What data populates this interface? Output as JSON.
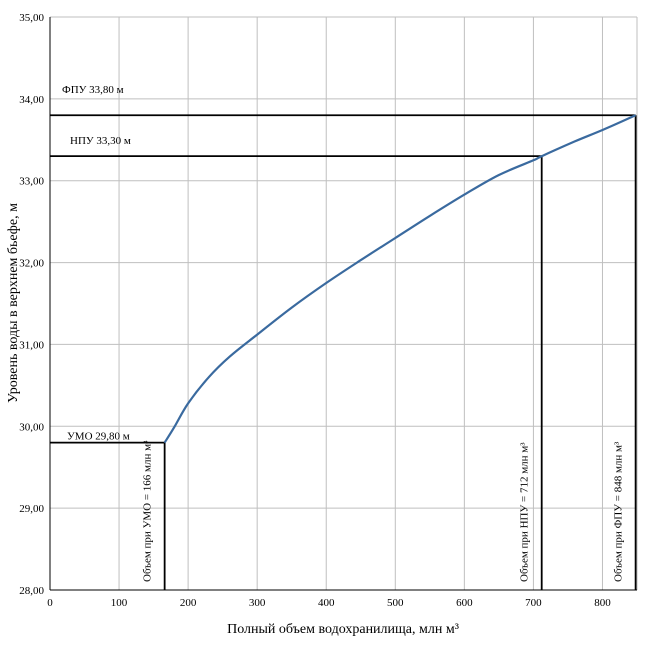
{
  "chart_data": {
    "type": "line",
    "title": "",
    "xlabel": "Полный объем водохранилища, млн м³",
    "ylabel": "Уровень воды в верхнем бьефе,  м",
    "xlim": [
      0,
      850
    ],
    "ylim": [
      28.0,
      35.0
    ],
    "x_ticks": [
      "0",
      "100",
      "200",
      "300",
      "400",
      "500",
      "600",
      "700",
      "800"
    ],
    "y_ticks": [
      "28,00",
      "29,00",
      "30,00",
      "31,00",
      "32,00",
      "33,00",
      "34,00",
      "35,00"
    ],
    "grid": true,
    "colors": {
      "curve": "#3a6a9f",
      "reference": "#000000",
      "grid": "#bfbfbf"
    },
    "series": [
      {
        "x": [
          166,
          180,
          200,
          230,
          260,
          300,
          350,
          400,
          450,
          500,
          550,
          600,
          650,
          700,
          712,
          760,
          800,
          848
        ],
        "y": [
          29.8,
          29.99,
          30.28,
          30.6,
          30.85,
          31.12,
          31.45,
          31.75,
          32.03,
          32.3,
          32.57,
          32.83,
          33.07,
          33.25,
          33.3,
          33.48,
          33.62,
          33.8
        ]
      }
    ],
    "reference_lines": [
      {
        "label": "ФПУ 33,80 м",
        "level": 33.8,
        "volume": 848,
        "volume_label": "Объем при ФПУ = 848 млн м³"
      },
      {
        "label": "НПУ 33,30 м",
        "level": 33.3,
        "volume": 712,
        "volume_label": "Объем при НПУ = 712 млн м³"
      },
      {
        "label": "УМО 29,80 м",
        "level": 29.8,
        "volume": 166,
        "volume_label": "Объем при УМО = 166  млн м³"
      }
    ]
  }
}
